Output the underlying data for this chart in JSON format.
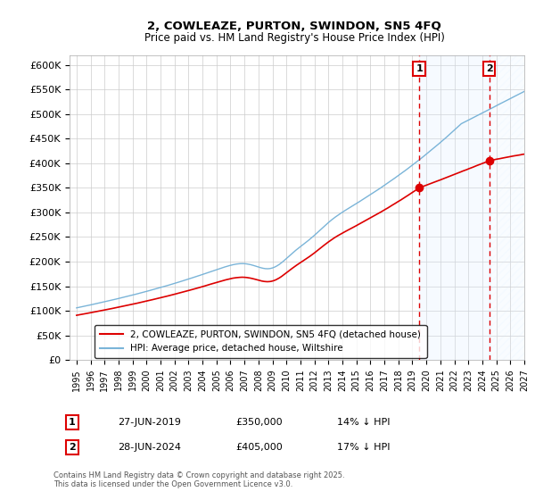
{
  "title_line1": "2, COWLEAZE, PURTON, SWINDON, SN5 4FQ",
  "title_line2": "Price paid vs. HM Land Registry's House Price Index (HPI)",
  "ylabel_ticks": [
    "£0",
    "£50K",
    "£100K",
    "£150K",
    "£200K",
    "£250K",
    "£300K",
    "£350K",
    "£400K",
    "£450K",
    "£500K",
    "£550K",
    "£600K"
  ],
  "ytick_vals": [
    0,
    50000,
    100000,
    150000,
    200000,
    250000,
    300000,
    350000,
    400000,
    450000,
    500000,
    550000,
    600000
  ],
  "ylim": [
    0,
    620000
  ],
  "xlim_start": 1994.5,
  "xlim_end": 2027.0,
  "xtick_years": [
    1995,
    1996,
    1997,
    1998,
    1999,
    2000,
    2001,
    2002,
    2003,
    2004,
    2005,
    2006,
    2007,
    2008,
    2009,
    2010,
    2011,
    2012,
    2013,
    2014,
    2015,
    2016,
    2017,
    2018,
    2019,
    2020,
    2021,
    2022,
    2023,
    2024,
    2025,
    2026,
    2027
  ],
  "hpi_color": "#7ab4d8",
  "property_color": "#dd0000",
  "vline_color": "#dd0000",
  "shade_color": "#dceeff",
  "marker1_year": 2019.49,
  "marker2_year": 2024.49,
  "marker1_price": 350000,
  "marker2_price": 405000,
  "legend_property": "2, COWLEAZE, PURTON, SWINDON, SN5 4FQ (detached house)",
  "legend_hpi": "HPI: Average price, detached house, Wiltshire",
  "annotation1_label": "1",
  "annotation2_label": "2",
  "annotation1_date": "27-JUN-2019",
  "annotation1_price": "£350,000",
  "annotation1_hpi": "14% ↓ HPI",
  "annotation2_date": "28-JUN-2024",
  "annotation2_price": "£405,000",
  "annotation2_hpi": "17% ↓ HPI",
  "footnote": "Contains HM Land Registry data © Crown copyright and database right 2025.\nThis data is licensed under the Open Government Licence v3.0.",
  "bg_color": "#ffffff",
  "plot_bg_color": "#ffffff",
  "grid_color": "#cccccc"
}
